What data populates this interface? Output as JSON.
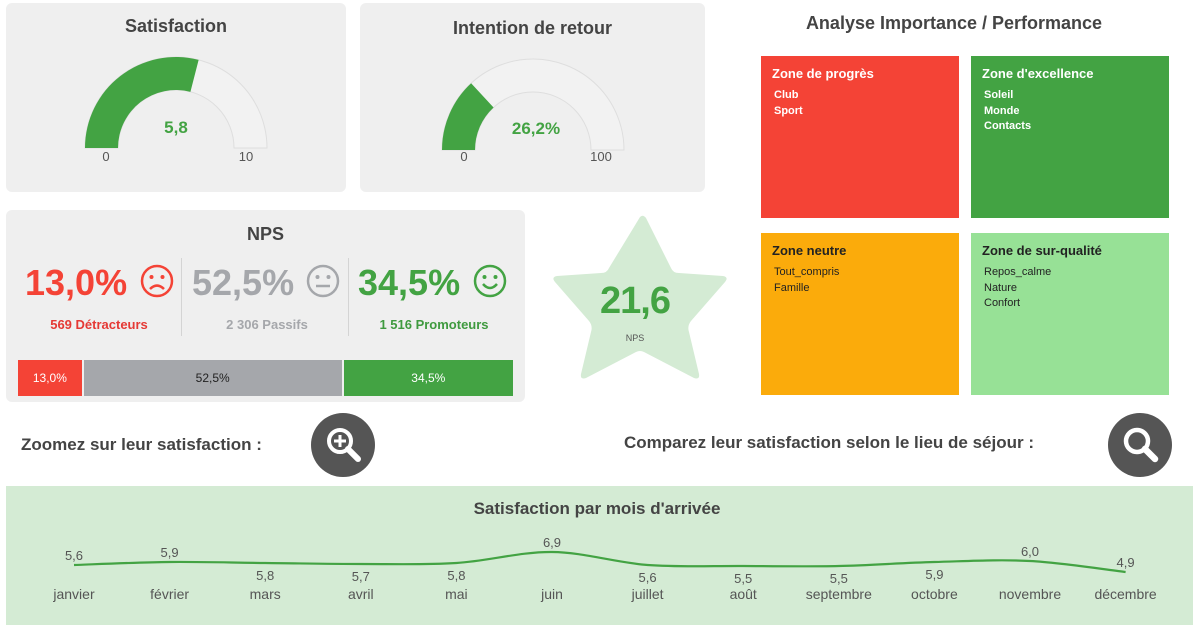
{
  "satisfaction": {
    "title": "Satisfaction",
    "value_label": "5,8",
    "value": 5.8,
    "min_label": "0",
    "max_label": "10",
    "max": 10
  },
  "intention": {
    "title": "Intention de retour",
    "value_label": "26,2%",
    "value": 26.2,
    "min_label": "0",
    "max_label": "100",
    "max": 100
  },
  "nps": {
    "title": "NPS",
    "detractors": {
      "pct": "13,0%",
      "count": "569 Détracteurs",
      "bar_label": "13,0%",
      "share": 13.0
    },
    "passives": {
      "pct": "52,5%",
      "count": "2 306 Passifs",
      "bar_label": "52,5%",
      "share": 52.5
    },
    "promoters": {
      "pct": "34,5%",
      "count": "1 516 Promoteurs",
      "bar_label": "34,5%",
      "share": 34.5
    },
    "score": "21,6",
    "score_label": "NPS"
  },
  "ipa": {
    "title": "Analyse Importance / Performance",
    "zones": [
      {
        "title": "Zone de progrès",
        "items": [
          "Club",
          "Sport"
        ]
      },
      {
        "title": "Zone d'excellence",
        "items": [
          "Soleil",
          "Monde",
          "Contacts"
        ]
      },
      {
        "title": "Zone neutre",
        "items": [
          "Tout_compris",
          "Famille"
        ]
      },
      {
        "title": "Zone de sur-qualité",
        "items": [
          "Repos_calme",
          "Nature",
          "Confort"
        ]
      }
    ]
  },
  "prompts": {
    "zoom": "Zoomez sur leur satisfaction :",
    "compare": "Comparez leur satisfaction selon le lieu de séjour :"
  },
  "colors": {
    "green": "#43a343",
    "red": "#f44336",
    "orange": "#fbab0b",
    "light_green": "#97e196",
    "grey": "#a5a7ab",
    "star": "#d4ebd4",
    "gauge_bg": "#f2f2f2"
  },
  "icons": {
    "zoom": "zoom-in-icon",
    "compare": "search-icon",
    "detractors": "sad-face-icon",
    "passives": "neutral-face-icon",
    "promoters": "smiley-face-icon"
  },
  "chart_data": {
    "type": "line",
    "title": "Satisfaction par mois d'arrivée",
    "categories": [
      "janvier",
      "février",
      "mars",
      "avril",
      "mai",
      "juin",
      "juillet",
      "août",
      "septembre",
      "octobre",
      "novembre",
      "décembre"
    ],
    "values": [
      5.6,
      5.9,
      5.8,
      5.7,
      5.8,
      6.9,
      5.6,
      5.5,
      5.5,
      5.9,
      6.0,
      4.9
    ],
    "value_labels": [
      "5,6",
      "5,9",
      "5,8",
      "5,7",
      "5,8",
      "6,9",
      "5,6",
      "5,5",
      "5,5",
      "5,9",
      "6,0",
      "4,9"
    ],
    "grid": false,
    "legend": "none"
  }
}
